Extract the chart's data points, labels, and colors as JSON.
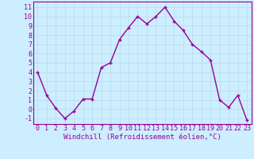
{
  "x": [
    0,
    1,
    2,
    3,
    4,
    5,
    6,
    7,
    8,
    9,
    10,
    11,
    12,
    13,
    14,
    15,
    16,
    17,
    18,
    19,
    20,
    21,
    22,
    23
  ],
  "y": [
    4,
    1.5,
    0.1,
    -1,
    -0.2,
    1.1,
    1.1,
    4.5,
    5,
    7.5,
    8.8,
    10,
    9.2,
    10,
    11,
    9.5,
    8.5,
    7,
    6.2,
    5.3,
    1,
    0.2,
    1.5,
    -1.2
  ],
  "line_color": "#990099",
  "marker": "+",
  "bg_color": "#cceeff",
  "grid_color": "#aaddee",
  "xlabel": "Windchill (Refroidissement éolien,°C)",
  "yticks": [
    -1,
    0,
    1,
    2,
    3,
    4,
    5,
    6,
    7,
    8,
    9,
    10,
    11
  ],
  "xticks": [
    0,
    1,
    2,
    3,
    4,
    5,
    6,
    7,
    8,
    9,
    10,
    11,
    12,
    13,
    14,
    15,
    16,
    17,
    18,
    19,
    20,
    21,
    22,
    23
  ],
  "ylim": [
    -1.6,
    11.6
  ],
  "xlim": [
    -0.5,
    23.5
  ],
  "xlabel_fontsize": 6.5,
  "tick_fontsize": 6,
  "marker_size": 3,
  "line_width": 1.0
}
